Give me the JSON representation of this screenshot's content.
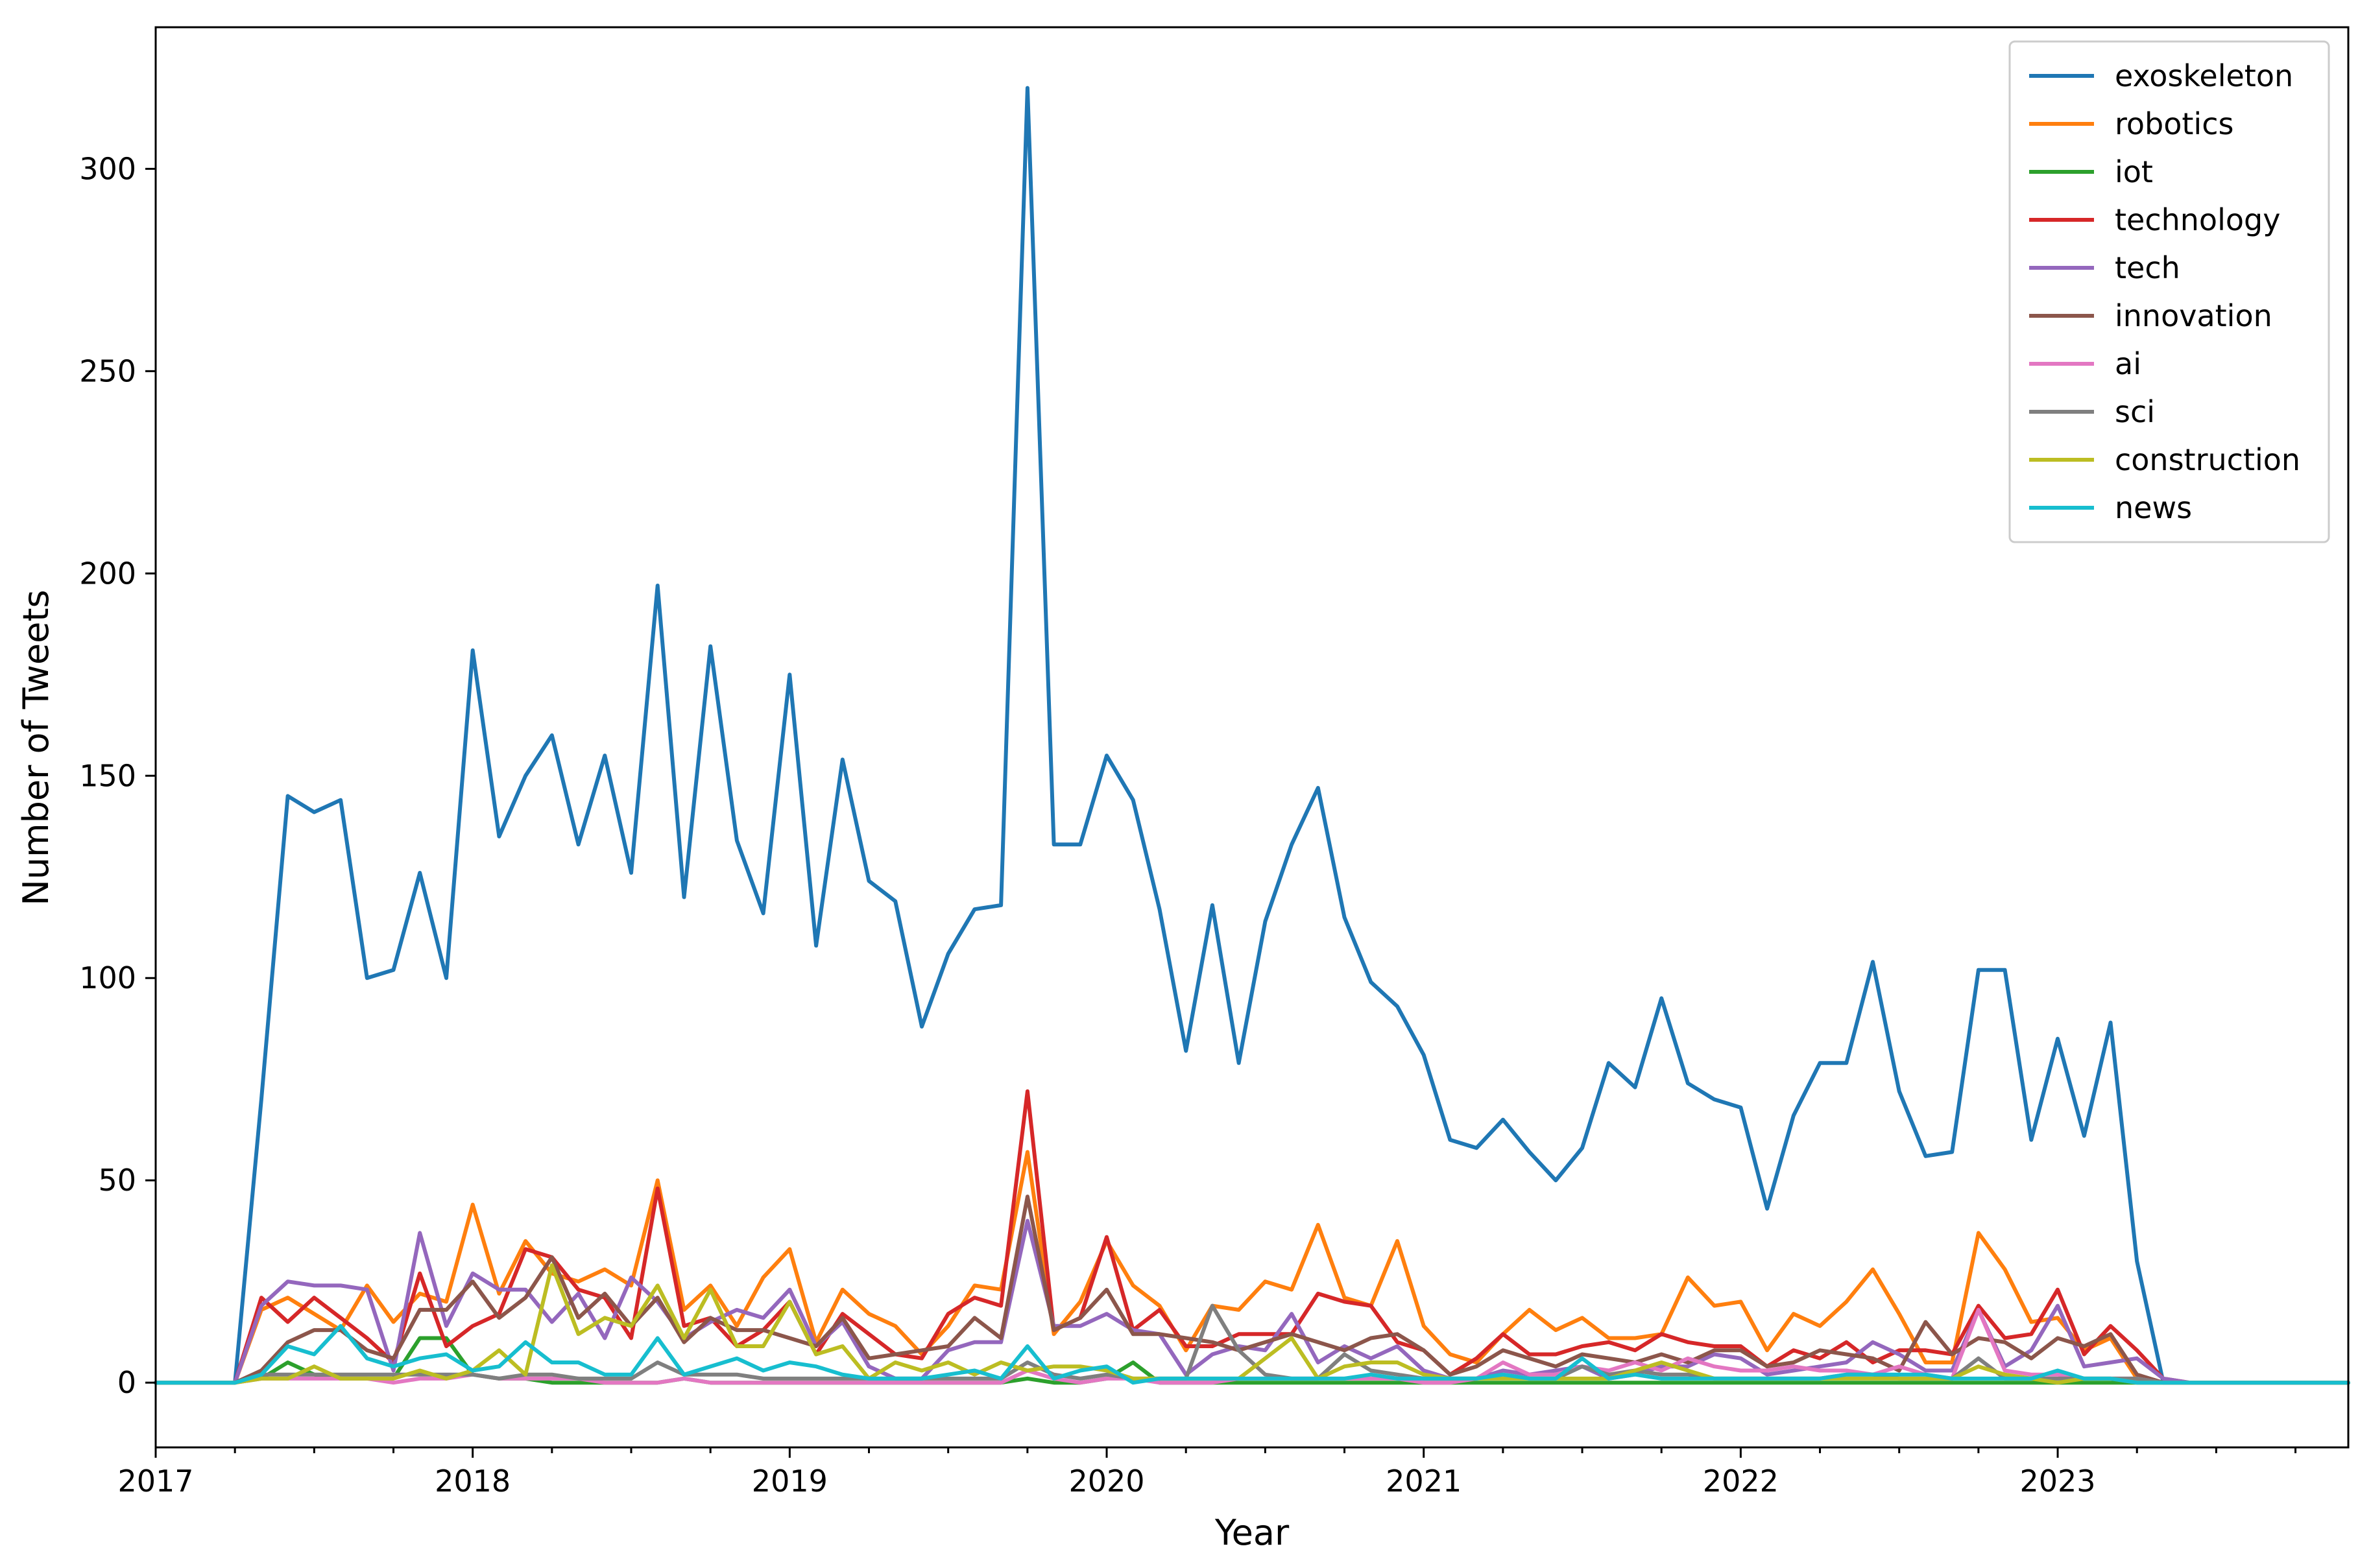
{
  "chart_data": {
    "type": "line",
    "title": "",
    "xlabel": "Year",
    "ylabel": "Number of Tweets",
    "x_start": "2017-01",
    "x_end": "2023-12",
    "xlim": [
      "2017-01",
      "2023-12"
    ],
    "ylim": [
      -16,
      335
    ],
    "x_ticks": [
      "2017",
      "2018",
      "2019",
      "2020",
      "2021",
      "2022",
      "2023"
    ],
    "y_ticks": [
      0,
      50,
      100,
      150,
      200,
      250,
      300
    ],
    "grid": false,
    "legend_position": "top-right",
    "x": [
      "2017-01",
      "2017-02",
      "2017-03",
      "2017-04",
      "2017-05",
      "2017-06",
      "2017-07",
      "2017-08",
      "2017-09",
      "2017-10",
      "2017-11",
      "2017-12",
      "2018-01",
      "2018-02",
      "2018-03",
      "2018-04",
      "2018-05",
      "2018-06",
      "2018-07",
      "2018-08",
      "2018-09",
      "2018-10",
      "2018-11",
      "2018-12",
      "2019-01",
      "2019-02",
      "2019-03",
      "2019-04",
      "2019-05",
      "2019-06",
      "2019-07",
      "2019-08",
      "2019-09",
      "2019-10",
      "2019-11",
      "2019-12",
      "2020-01",
      "2020-02",
      "2020-03",
      "2020-04",
      "2020-05",
      "2020-06",
      "2020-07",
      "2020-08",
      "2020-09",
      "2020-10",
      "2020-11",
      "2020-12",
      "2021-01",
      "2021-02",
      "2021-03",
      "2021-04",
      "2021-05",
      "2021-06",
      "2021-07",
      "2021-08",
      "2021-09",
      "2021-10",
      "2021-11",
      "2021-12",
      "2022-01",
      "2022-02",
      "2022-03",
      "2022-04",
      "2022-05",
      "2022-06",
      "2022-07",
      "2022-08",
      "2022-09",
      "2022-10",
      "2022-11",
      "2022-12",
      "2023-01",
      "2023-02",
      "2023-03",
      "2023-04",
      "2023-05",
      "2023-06",
      "2023-07",
      "2023-08",
      "2023-09",
      "2023-10",
      "2023-11",
      "2023-12"
    ],
    "series": [
      {
        "name": "exoskeleton",
        "color": "#1f77b4",
        "values": [
          0,
          0,
          0,
          0,
          70,
          145,
          141,
          144,
          100,
          102,
          126,
          100,
          181,
          135,
          150,
          160,
          133,
          155,
          126,
          197,
          120,
          182,
          134,
          116,
          175,
          108,
          154,
          124,
          119,
          88,
          106,
          117,
          118,
          320,
          133,
          133,
          155,
          144,
          117,
          82,
          118,
          79,
          114,
          133,
          147,
          115,
          99,
          93,
          81,
          60,
          58,
          65,
          57,
          50,
          58,
          79,
          73,
          95,
          74,
          70,
          68,
          43,
          66,
          79,
          79,
          104,
          72,
          56,
          57,
          102,
          102,
          60,
          85,
          61,
          89,
          30,
          0,
          0,
          0,
          0,
          0,
          0,
          0,
          0
        ]
      },
      {
        "name": "robotics",
        "color": "#ff7f0e",
        "values": [
          0,
          0,
          0,
          0,
          18,
          21,
          17,
          13,
          24,
          15,
          22,
          20,
          44,
          22,
          35,
          27,
          25,
          28,
          24,
          50,
          18,
          24,
          14,
          26,
          33,
          10,
          23,
          17,
          14,
          7,
          14,
          24,
          23,
          57,
          12,
          20,
          35,
          24,
          19,
          8,
          19,
          18,
          25,
          23,
          39,
          21,
          19,
          35,
          14,
          7,
          5,
          12,
          18,
          13,
          16,
          11,
          11,
          12,
          26,
          19,
          20,
          8,
          17,
          14,
          20,
          28,
          17,
          5,
          5,
          37,
          28,
          15,
          16,
          8,
          11,
          1,
          0,
          0,
          0,
          0,
          0,
          0,
          0,
          0
        ]
      },
      {
        "name": "iot",
        "color": "#2ca02c",
        "values": [
          0,
          0,
          0,
          0,
          1,
          5,
          2,
          1,
          1,
          1,
          11,
          11,
          2,
          1,
          1,
          0,
          0,
          0,
          0,
          0,
          1,
          0,
          0,
          0,
          0,
          0,
          0,
          0,
          0,
          0,
          0,
          0,
          0,
          1,
          0,
          0,
          1,
          5,
          0,
          0,
          0,
          0,
          0,
          0,
          0,
          0,
          0,
          0,
          0,
          0,
          0,
          0,
          0,
          0,
          0,
          0,
          0,
          0,
          0,
          0,
          0,
          0,
          0,
          0,
          0,
          0,
          0,
          0,
          0,
          0,
          0,
          0,
          0,
          0,
          0,
          0,
          0,
          0,
          0,
          0,
          0,
          0,
          0,
          0
        ]
      },
      {
        "name": "technology",
        "color": "#d62728",
        "values": [
          0,
          0,
          0,
          0,
          21,
          15,
          21,
          16,
          11,
          5,
          27,
          9,
          14,
          17,
          33,
          31,
          23,
          21,
          11,
          48,
          14,
          16,
          9,
          13,
          20,
          7,
          17,
          12,
          7,
          6,
          17,
          21,
          19,
          72,
          13,
          16,
          36,
          13,
          18,
          9,
          9,
          12,
          12,
          12,
          22,
          20,
          19,
          10,
          8,
          2,
          6,
          12,
          7,
          7,
          9,
          10,
          8,
          12,
          10,
          9,
          9,
          4,
          8,
          6,
          10,
          5,
          8,
          8,
          7,
          19,
          11,
          12,
          23,
          7,
          14,
          8,
          1,
          0,
          0,
          0,
          0,
          0,
          0,
          0
        ]
      },
      {
        "name": "tech",
        "color": "#9467bd",
        "values": [
          0,
          0,
          0,
          0,
          19,
          25,
          24,
          24,
          23,
          3,
          37,
          14,
          27,
          23,
          23,
          15,
          22,
          11,
          26,
          20,
          11,
          15,
          18,
          16,
          23,
          9,
          15,
          4,
          1,
          1,
          8,
          10,
          10,
          40,
          14,
          14,
          17,
          13,
          12,
          2,
          7,
          9,
          8,
          17,
          5,
          9,
          6,
          9,
          3,
          1,
          1,
          3,
          2,
          3,
          4,
          1,
          2,
          4,
          4,
          7,
          6,
          2,
          3,
          4,
          5,
          10,
          7,
          3,
          3,
          18,
          4,
          8,
          19,
          4,
          5,
          6,
          1,
          0,
          0,
          0,
          0,
          0,
          0,
          0
        ]
      },
      {
        "name": "innovation",
        "color": "#8c564b",
        "values": [
          0,
          0,
          0,
          0,
          3,
          10,
          13,
          13,
          8,
          6,
          18,
          18,
          25,
          16,
          21,
          31,
          16,
          22,
          14,
          21,
          10,
          16,
          13,
          13,
          11,
          9,
          16,
          6,
          7,
          8,
          9,
          16,
          11,
          46,
          13,
          16,
          23,
          12,
          12,
          11,
          10,
          8,
          10,
          12,
          10,
          8,
          11,
          12,
          8,
          2,
          4,
          8,
          6,
          4,
          7,
          6,
          5,
          7,
          5,
          8,
          8,
          4,
          5,
          8,
          7,
          6,
          3,
          15,
          7,
          11,
          10,
          6,
          11,
          9,
          12,
          2,
          0,
          0,
          0,
          0,
          0,
          0,
          0,
          0
        ]
      },
      {
        "name": "ai",
        "color": "#e377c2",
        "values": [
          0,
          0,
          0,
          0,
          1,
          1,
          1,
          1,
          1,
          0,
          1,
          1,
          2,
          1,
          1,
          1,
          1,
          0,
          0,
          0,
          1,
          0,
          0,
          0,
          0,
          0,
          0,
          0,
          0,
          0,
          0,
          0,
          0,
          3,
          1,
          0,
          1,
          1,
          0,
          0,
          0,
          1,
          1,
          1,
          1,
          1,
          1,
          1,
          0,
          0,
          1,
          5,
          2,
          2,
          4,
          3,
          5,
          3,
          6,
          4,
          3,
          3,
          4,
          3,
          3,
          2,
          4,
          2,
          1,
          18,
          3,
          2,
          2,
          1,
          1,
          1,
          0,
          0,
          0,
          0,
          0,
          0,
          0,
          0
        ]
      },
      {
        "name": "sci",
        "color": "#7f7f7f",
        "values": [
          0,
          0,
          0,
          0,
          2,
          2,
          2,
          2,
          2,
          2,
          2,
          2,
          2,
          1,
          2,
          2,
          1,
          1,
          1,
          5,
          2,
          2,
          2,
          1,
          1,
          1,
          1,
          1,
          1,
          1,
          1,
          1,
          1,
          5,
          2,
          1,
          2,
          1,
          1,
          1,
          19,
          8,
          2,
          1,
          1,
          7,
          3,
          2,
          1,
          1,
          1,
          2,
          1,
          1,
          4,
          2,
          3,
          2,
          2,
          1,
          1,
          1,
          1,
          1,
          2,
          2,
          1,
          1,
          1,
          6,
          1,
          1,
          1,
          1,
          1,
          1,
          0,
          0,
          0,
          0,
          0,
          0,
          0,
          0
        ]
      },
      {
        "name": "construction",
        "color": "#bcbd22",
        "values": [
          0,
          0,
          0,
          0,
          1,
          1,
          4,
          1,
          1,
          1,
          3,
          1,
          3,
          8,
          2,
          29,
          12,
          16,
          14,
          24,
          11,
          23,
          9,
          9,
          20,
          7,
          9,
          1,
          5,
          3,
          5,
          2,
          5,
          3,
          4,
          4,
          3,
          1,
          1,
          1,
          1,
          1,
          6,
          11,
          1,
          4,
          5,
          5,
          2,
          1,
          1,
          1,
          1,
          1,
          1,
          1,
          3,
          5,
          3,
          1,
          1,
          1,
          1,
          1,
          1,
          1,
          1,
          1,
          1,
          4,
          2,
          1,
          0,
          1,
          1,
          0,
          0,
          0,
          0,
          0,
          0,
          0,
          0,
          0
        ]
      },
      {
        "name": "news",
        "color": "#17becf",
        "values": [
          0,
          0,
          0,
          0,
          2,
          9,
          7,
          14,
          6,
          4,
          6,
          7,
          3,
          4,
          10,
          5,
          5,
          2,
          2,
          11,
          2,
          4,
          6,
          3,
          5,
          4,
          2,
          1,
          1,
          1,
          2,
          3,
          1,
          9,
          1,
          3,
          4,
          0,
          1,
          1,
          1,
          1,
          1,
          1,
          1,
          1,
          2,
          1,
          1,
          1,
          1,
          2,
          1,
          1,
          6,
          1,
          2,
          1,
          1,
          1,
          1,
          1,
          1,
          1,
          2,
          2,
          2,
          2,
          1,
          1,
          1,
          1,
          3,
          1,
          1,
          0,
          0,
          0,
          0,
          0,
          0,
          0,
          0,
          0
        ]
      }
    ]
  }
}
